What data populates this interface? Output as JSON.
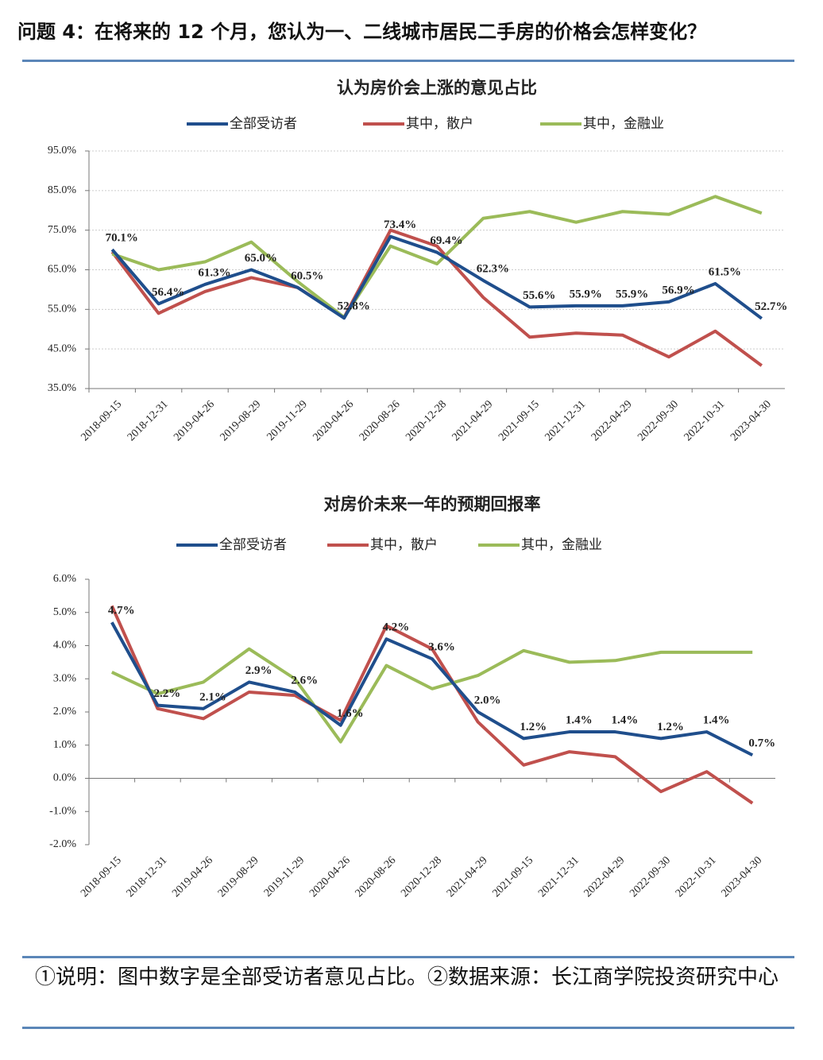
{
  "header": {
    "title": "问题 4：在将来的 12 个月，您认为一、二线城市居民二手房的价格会怎样变化？"
  },
  "chart_data": [
    {
      "type": "line",
      "title": "认为房价会上涨的意见占比",
      "categories": [
        "2018-09-15",
        "2018-12-31",
        "2019-04-26",
        "2019-08-29",
        "2019-11-29",
        "2020-04-26",
        "2020-08-26",
        "2020-12-28",
        "2021-04-29",
        "2021-09-15",
        "2021-12-31",
        "2022-04-29",
        "2022-09-30",
        "2022-10-31",
        "2023-04-30"
      ],
      "series": [
        {
          "name": "全部受访者",
          "color": "#1f4e8c",
          "values": [
            70.1,
            56.4,
            61.3,
            65.0,
            60.5,
            52.8,
            73.4,
            69.4,
            62.3,
            55.6,
            55.9,
            55.9,
            56.9,
            61.5,
            52.7
          ],
          "value_labels": [
            "70.1%",
            "56.4%",
            "61.3%",
            "65.0%",
            "60.5%",
            "52.8%",
            "73.4%",
            "69.4%",
            "62.3%",
            "55.6%",
            "55.9%",
            "55.9%",
            "56.9%",
            "61.5%",
            "52.7%"
          ]
        },
        {
          "name": "其中，散户",
          "color": "#c0504d",
          "values": [
            69.5,
            54,
            59.5,
            63,
            60.5,
            53,
            75,
            71,
            58,
            48,
            49,
            48.5,
            43,
            49.5,
            40.8
          ]
        },
        {
          "name": "其中，金融业",
          "color": "#9bbb59",
          "values": [
            69,
            65,
            67,
            72,
            62,
            53,
            71,
            66.5,
            78,
            79.7,
            77,
            79.7,
            79,
            83.5,
            79.3
          ]
        }
      ],
      "ylim": [
        35,
        95
      ],
      "yticks": [
        {
          "value": 35,
          "label": "35.0%"
        },
        {
          "value": 45,
          "label": "45.0%"
        },
        {
          "value": 55,
          "label": "55.0%"
        },
        {
          "value": 65,
          "label": "65.0%"
        },
        {
          "value": 75,
          "label": "75.0%"
        },
        {
          "value": 85,
          "label": "85.0%"
        },
        {
          "value": 95,
          "label": "95.0%"
        }
      ],
      "grid": true,
      "legend": "top"
    },
    {
      "type": "line",
      "title": "对房价未来一年的预期回报率",
      "categories": [
        "2018-09-15",
        "2018-12-31",
        "2019-04-26",
        "2019-08-29",
        "2019-11-29",
        "2020-04-26",
        "2020-08-26",
        "2020-12-28",
        "2021-04-29",
        "2021-09-15",
        "2021-12-31",
        "2022-04-29",
        "2022-09-30",
        "2022-10-31",
        "2023-04-30"
      ],
      "series": [
        {
          "name": "全部受访者",
          "color": "#1f4e8c",
          "values": [
            4.7,
            2.2,
            2.1,
            2.9,
            2.6,
            1.6,
            4.2,
            3.6,
            2.0,
            1.2,
            1.4,
            1.4,
            1.2,
            1.4,
            0.7
          ],
          "value_labels": [
            "4.7%",
            "2.2%",
            "2.1%",
            "2.9%",
            "2.6%",
            "1.6%",
            "4.2%",
            "3.6%",
            "2.0%",
            "1.2%",
            "1.4%",
            "1.4%",
            "1.2%",
            "1.4%",
            "0.7%"
          ]
        },
        {
          "name": "其中，散户",
          "color": "#c0504d",
          "values": [
            5.2,
            2.1,
            1.8,
            2.6,
            2.5,
            1.75,
            4.6,
            3.9,
            1.7,
            0.4,
            0.8,
            0.65,
            -0.4,
            0.2,
            -0.75
          ]
        },
        {
          "name": "其中，金融业",
          "color": "#9bbb59",
          "values": [
            3.2,
            2.55,
            2.9,
            3.9,
            3.0,
            1.1,
            3.4,
            2.7,
            3.1,
            3.85,
            3.5,
            3.55,
            3.8,
            3.8,
            3.8
          ]
        }
      ],
      "ylim": [
        -2,
        6
      ],
      "yticks": [
        {
          "value": -2,
          "label": "-2.0%"
        },
        {
          "value": -1,
          "label": "-1.0%"
        },
        {
          "value": 0,
          "label": "0.0%"
        },
        {
          "value": 1,
          "label": "1.0%"
        },
        {
          "value": 2,
          "label": "2.0%"
        },
        {
          "value": 3,
          "label": "3.0%"
        },
        {
          "value": 4,
          "label": "4.0%"
        },
        {
          "value": 5,
          "label": "5.0%"
        },
        {
          "value": 6,
          "label": "6.0%"
        }
      ],
      "grid": false,
      "legend": "top"
    }
  ],
  "footer": {
    "note": "①说明：图中数字是全部受访者意见占比。②数据来源：长江商学院投资研究中心"
  }
}
